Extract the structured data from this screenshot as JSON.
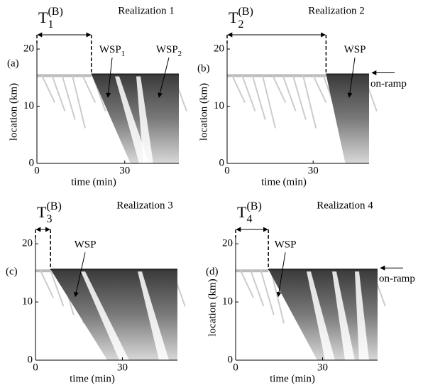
{
  "chart_data": [
    {
      "type": "spatiotemporal",
      "panel": "(a)",
      "title": "Realization 1",
      "xlabel": "time (min)",
      "ylabel": "location (km)",
      "xlim": [
        0,
        48.5
      ],
      "ylim": [
        0,
        21
      ],
      "xticks": [
        0,
        30
      ],
      "yticks": [
        0,
        10,
        20
      ],
      "ramp_location": 15.6,
      "breakdown": {
        "symbol": "T",
        "index": "1",
        "sup": "(B)",
        "time": 18.6
      },
      "annotations": [
        {
          "text": "WSP",
          "sub": "1"
        },
        {
          "text": "WSP",
          "sub": "2"
        }
      ]
    },
    {
      "type": "spatiotemporal",
      "panel": "(b)",
      "title": "Realization 2",
      "xlabel": "time (min)",
      "ylabel": "location (km)",
      "xlim": [
        0,
        49.5
      ],
      "ylim": [
        0,
        21
      ],
      "xticks": [
        0,
        30
      ],
      "yticks": [
        0,
        10,
        20
      ],
      "ramp_location": 15.6,
      "ramp_label": "on-ramp",
      "breakdown": {
        "symbol": "T",
        "index": "2",
        "sup": "(B)",
        "time": 34.5
      },
      "annotations": [
        {
          "text": "WSP"
        }
      ]
    },
    {
      "type": "spatiotemporal",
      "panel": "(c)",
      "title": "Realization 3",
      "xlabel": "time (min)",
      "xlim": [
        0,
        49
      ],
      "ylim": [
        0,
        21
      ],
      "xticks": [
        0,
        30
      ],
      "yticks": [
        0,
        10,
        20
      ],
      "ramp_location": 15.6,
      "breakdown": {
        "symbol": "T",
        "index": "3",
        "sup": "(B)",
        "time": 5.2
      },
      "annotations": [
        {
          "text": "WSP"
        }
      ]
    },
    {
      "type": "spatiotemporal",
      "panel": "(d)",
      "title": "Realization 4",
      "xlabel": "time (min)",
      "ylabel": "location (km)",
      "xlim": [
        0,
        49
      ],
      "ylim": [
        0,
        21
      ],
      "xticks": [
        0,
        30
      ],
      "yticks": [
        0,
        10,
        20
      ],
      "ramp_location": 15.6,
      "ramp_label": "on-ramp",
      "breakdown": {
        "symbol": "T",
        "index": "4",
        "sup": "(B)",
        "time": 11.3
      },
      "annotations": [
        {
          "text": "WSP"
        }
      ]
    }
  ]
}
